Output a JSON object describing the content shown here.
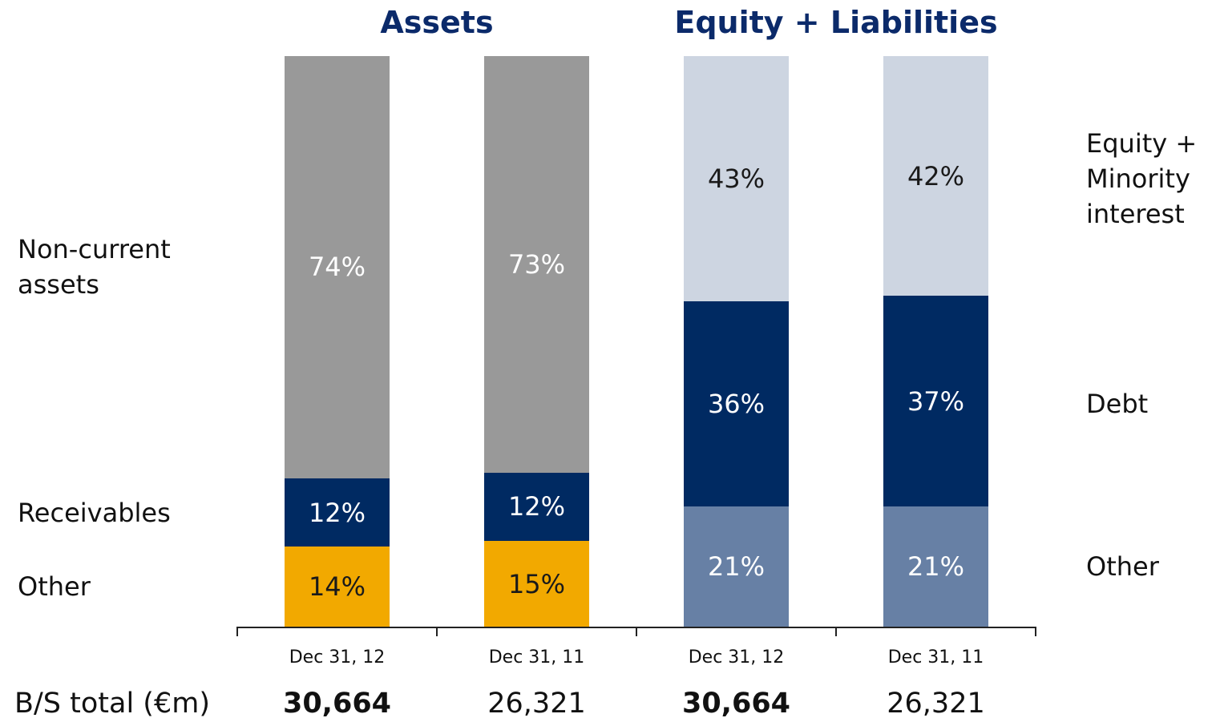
{
  "footer_label": "B/S total (€m)",
  "chart_data": [
    {
      "type": "bar",
      "title": "Assets",
      "legend": "left",
      "ylim": [
        0,
        100
      ],
      "categories": [
        "Dec 31, 12",
        "Dec 31, 11"
      ],
      "totals": [
        {
          "value": 30664,
          "label": "30,664"
        },
        {
          "value": 26321,
          "label": "26,321"
        }
      ],
      "totals_bold": [
        true,
        false
      ],
      "series": [
        {
          "name": "Other",
          "color": "#f2a900",
          "label_color": "#1a1a1a",
          "values": [
            14,
            15
          ],
          "value_labels": [
            "14%",
            "15%"
          ]
        },
        {
          "name": "Receivables",
          "color": "#002a62",
          "label_color": "#ffffff",
          "values": [
            12,
            12
          ],
          "value_labels": [
            "12%",
            "12%"
          ]
        },
        {
          "name": "Non-current assets",
          "color": "#999999",
          "label_color": "#ffffff",
          "values": [
            74,
            73
          ],
          "value_labels": [
            "74%",
            "73%"
          ]
        }
      ]
    },
    {
      "type": "bar",
      "title": "Equity + Liabilities",
      "legend": "right",
      "ylim": [
        0,
        100
      ],
      "categories": [
        "Dec 31, 12",
        "Dec 31, 11"
      ],
      "totals": [
        {
          "value": 30664,
          "label": "30,664"
        },
        {
          "value": 26321,
          "label": "26,321"
        }
      ],
      "totals_bold": [
        true,
        false
      ],
      "series": [
        {
          "name": "Other",
          "color": "#6780a5",
          "label_color": "#ffffff",
          "values": [
            21,
            21
          ],
          "value_labels": [
            "21%",
            "21%"
          ]
        },
        {
          "name": "Debt",
          "color": "#002a62",
          "label_color": "#ffffff",
          "values": [
            36,
            37
          ],
          "value_labels": [
            "36%",
            "37%"
          ]
        },
        {
          "name": "Equity + Minority interest",
          "color": "#cdd5e1",
          "label_color": "#1a1a1a",
          "values": [
            43,
            42
          ],
          "value_labels": [
            "43%",
            "42%"
          ]
        }
      ]
    }
  ]
}
